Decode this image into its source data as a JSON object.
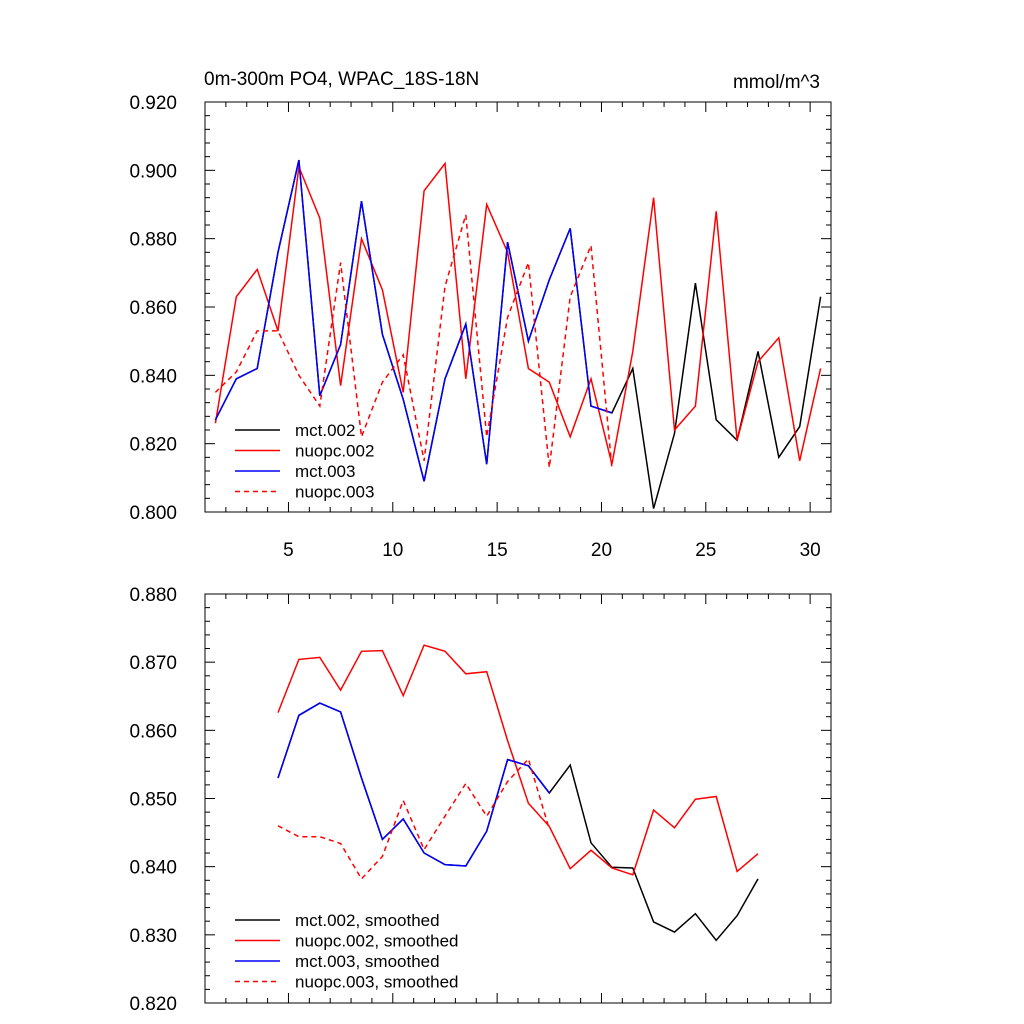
{
  "chart_data": [
    {
      "type": "line",
      "title": "0m-300m PO4, WPAC_18S-18N",
      "units": "mmol/m^3",
      "xlim": [
        1,
        31
      ],
      "ylim": [
        0.8,
        0.92
      ],
      "xticks": [
        5,
        10,
        15,
        20,
        25,
        30
      ],
      "xtick_labels": [
        "5",
        "10",
        "15",
        "20",
        "25",
        "30"
      ],
      "yticks": [
        0.8,
        0.82,
        0.84,
        0.86,
        0.88,
        0.9,
        0.92
      ],
      "ytick_labels": [
        "0.800",
        "0.820",
        "0.840",
        "0.860",
        "0.880",
        "0.900",
        "0.920"
      ],
      "legend_position": "bottom-left",
      "series": [
        {
          "name": "mct.002",
          "color": "#000000",
          "dash": "solid",
          "x": [
            1.5,
            2.5,
            3.5,
            4.5,
            5.5,
            6.5,
            7.5,
            8.5,
            9.5,
            10.5,
            11.5,
            12.5,
            13.5,
            14.5,
            15.5,
            16.5,
            17.5,
            18.5,
            19.5,
            20.5,
            21.5,
            22.5,
            23.5,
            24.5,
            25.5,
            26.5,
            27.5,
            28.5,
            29.5,
            30.5
          ],
          "values": [
            0.827,
            0.839,
            0.842,
            0.876,
            0.903,
            0.834,
            0.849,
            0.891,
            0.852,
            0.833,
            0.809,
            0.839,
            0.855,
            0.814,
            0.879,
            0.85,
            0.868,
            0.883,
            0.831,
            0.829,
            0.842,
            0.801,
            0.823,
            0.867,
            0.827,
            0.821,
            0.847,
            0.816,
            0.825,
            0.863
          ]
        },
        {
          "name": "nuopc.002",
          "color": "#ff0000",
          "dash": "solid",
          "x": [
            1.5,
            2.5,
            3.5,
            4.5,
            5.5,
            6.5,
            7.5,
            8.5,
            9.5,
            10.5,
            11.5,
            12.5,
            13.5,
            14.5,
            15.5,
            16.5,
            17.5,
            18.5,
            19.5,
            20.5,
            21.5,
            22.5,
            23.5,
            24.5,
            25.5,
            26.5,
            27.5,
            28.5,
            29.5,
            30.5
          ],
          "values": [
            0.826,
            0.863,
            0.871,
            0.853,
            0.901,
            0.886,
            0.837,
            0.88,
            0.865,
            0.835,
            0.894,
            0.902,
            0.839,
            0.89,
            0.876,
            0.842,
            0.838,
            0.822,
            0.839,
            0.814,
            0.847,
            0.892,
            0.824,
            0.831,
            0.888,
            0.821,
            0.844,
            0.851,
            0.815,
            0.842
          ]
        },
        {
          "name": "mct.003",
          "color": "#0000ff",
          "dash": "solid",
          "x": [
            1.5,
            2.5,
            3.5,
            4.5,
            5.5,
            6.5,
            7.5,
            8.5,
            9.5,
            10.5,
            11.5,
            12.5,
            13.5,
            14.5,
            15.5,
            16.5,
            17.5,
            18.5,
            19.5,
            20.5
          ],
          "values": [
            0.827,
            0.839,
            0.842,
            0.876,
            0.903,
            0.834,
            0.849,
            0.891,
            0.852,
            0.833,
            0.809,
            0.839,
            0.855,
            0.814,
            0.879,
            0.85,
            0.868,
            0.883,
            0.831,
            0.829
          ]
        },
        {
          "name": "nuopc.003",
          "color": "#ff0000",
          "dash": "dashed",
          "x": [
            1.5,
            2.5,
            3.5,
            4.5,
            5.5,
            6.5,
            7.5,
            8.5,
            9.5,
            10.5,
            11.5,
            12.5,
            13.5,
            14.5,
            15.5,
            16.5,
            17.5,
            18.5,
            19.5,
            20.5
          ],
          "values": [
            0.835,
            0.841,
            0.853,
            0.853,
            0.84,
            0.831,
            0.873,
            0.822,
            0.838,
            0.846,
            0.815,
            0.866,
            0.887,
            0.822,
            0.857,
            0.873,
            0.813,
            0.863,
            0.878,
            0.813
          ]
        }
      ]
    },
    {
      "type": "line",
      "title": "",
      "units": "",
      "xlim": [
        1,
        31
      ],
      "ylim": [
        0.82,
        0.88
      ],
      "xticks": [
        5,
        10,
        15,
        20,
        25,
        30
      ],
      "xtick_labels": [],
      "yticks": [
        0.82,
        0.83,
        0.84,
        0.85,
        0.86,
        0.87,
        0.88
      ],
      "ytick_labels": [
        "0.820",
        "0.830",
        "0.840",
        "0.850",
        "0.860",
        "0.870",
        "0.880"
      ],
      "legend_position": "bottom-left",
      "series": [
        {
          "name": "mct.002, smoothed",
          "color": "#000000",
          "dash": "solid",
          "x": [
            4.5,
            5.5,
            6.5,
            7.5,
            8.5,
            9.5,
            10.5,
            11.5,
            12.5,
            13.5,
            14.5,
            15.5,
            16.5,
            17.5,
            18.5,
            19.5,
            20.5,
            21.5,
            22.5,
            23.5,
            24.5,
            25.5,
            26.5,
            27.5
          ],
          "values": [
            0.853,
            0.8622,
            0.864,
            0.8627,
            0.853,
            0.844,
            0.847,
            0.842,
            0.8403,
            0.8401,
            0.8452,
            0.8557,
            0.8548,
            0.8508,
            0.8549,
            0.8435,
            0.8399,
            0.8398,
            0.8319,
            0.8304,
            0.8331,
            0.8292,
            0.8328,
            0.8382
          ]
        },
        {
          "name": "nuopc.002, smoothed",
          "color": "#ff0000",
          "dash": "solid",
          "x": [
            4.5,
            5.5,
            6.5,
            7.5,
            8.5,
            9.5,
            10.5,
            11.5,
            12.5,
            13.5,
            14.5,
            15.5,
            16.5,
            17.5,
            18.5,
            19.5,
            20.5,
            21.5,
            22.5,
            23.5,
            24.5,
            25.5,
            26.5,
            27.5
          ],
          "values": [
            0.8626,
            0.8704,
            0.8707,
            0.8659,
            0.8716,
            0.8717,
            0.8651,
            0.8725,
            0.8716,
            0.8683,
            0.8686,
            0.8585,
            0.8493,
            0.8459,
            0.8397,
            0.8424,
            0.8398,
            0.8388,
            0.8483,
            0.8457,
            0.8499,
            0.8503,
            0.8393,
            0.8419
          ]
        },
        {
          "name": "mct.003, smoothed",
          "color": "#0000ff",
          "dash": "solid",
          "x": [
            4.5,
            5.5,
            6.5,
            7.5,
            8.5,
            9.5,
            10.5,
            11.5,
            12.5,
            13.5,
            14.5,
            15.5,
            16.5,
            17.5
          ],
          "values": [
            0.853,
            0.8622,
            0.864,
            0.8627,
            0.853,
            0.844,
            0.847,
            0.842,
            0.8403,
            0.8401,
            0.8452,
            0.8557,
            0.8548,
            0.8508
          ]
        },
        {
          "name": "nuopc.003, smoothed",
          "color": "#ff0000",
          "dash": "dashed",
          "x": [
            4.5,
            5.5,
            6.5,
            7.5,
            8.5,
            9.5,
            10.5,
            11.5,
            12.5,
            13.5,
            14.5,
            15.5,
            16.5,
            17.5
          ],
          "values": [
            0.846,
            0.8444,
            0.8444,
            0.8434,
            0.8382,
            0.8415,
            0.8497,
            0.8425,
            0.8474,
            0.8522,
            0.8474,
            0.8525,
            0.8558,
            0.8455
          ]
        }
      ]
    }
  ]
}
